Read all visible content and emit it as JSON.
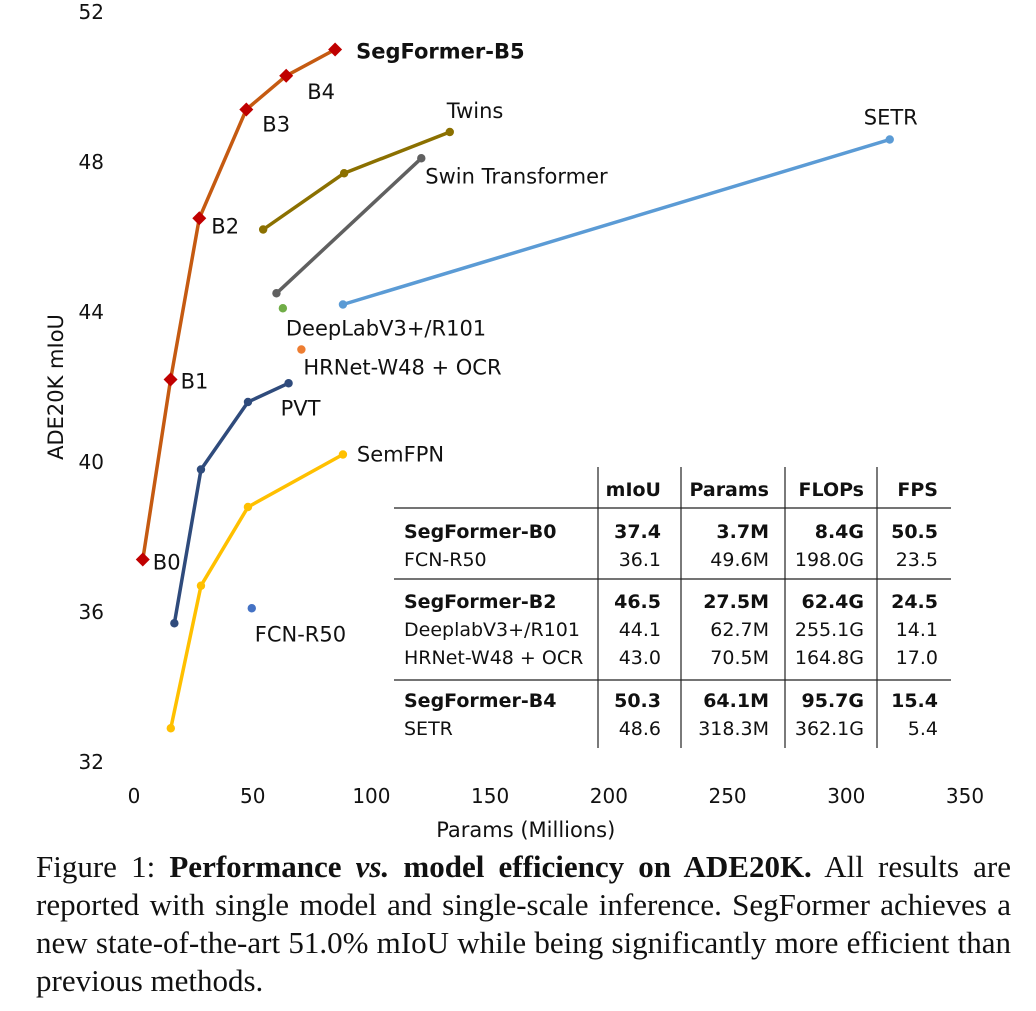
{
  "chart_data": {
    "type": "line",
    "xlabel": "Params (Millions)",
    "ylabel": "ADE20K mIoU",
    "xlim": [
      0,
      350
    ],
    "ylim": [
      32,
      52
    ],
    "xticks": [
      "0",
      "50",
      "100",
      "150",
      "200",
      "250",
      "300",
      "350"
    ],
    "yticks": [
      "32",
      "36",
      "40",
      "44",
      "48",
      "52"
    ],
    "grid": false,
    "series": [
      {
        "name": "SegFormer",
        "color": "#c55a11",
        "marker": "diamond",
        "marker_color": "#c00000",
        "points": [
          {
            "x": 3.7,
            "y": 37.4,
            "label": "B0"
          },
          {
            "x": 15.4,
            "y": 42.2,
            "label": "B1"
          },
          {
            "x": 27.5,
            "y": 46.5,
            "label": "B2"
          },
          {
            "x": 47.3,
            "y": 49.4,
            "label": "B3"
          },
          {
            "x": 64.1,
            "y": 50.3,
            "label": "B4"
          },
          {
            "x": 84.7,
            "y": 51.0,
            "label": "SegFormer-B5"
          }
        ]
      },
      {
        "name": "Twins",
        "color": "#8b7000",
        "points": [
          {
            "x": 54.4,
            "y": 46.2
          },
          {
            "x": 88.5,
            "y": 47.7
          },
          {
            "x": 133,
            "y": 48.8
          }
        ]
      },
      {
        "name": "Swin Transformer",
        "color": "#606060",
        "points": [
          {
            "x": 60,
            "y": 44.5
          },
          {
            "x": 121,
            "y": 48.1
          }
        ]
      },
      {
        "name": "SETR",
        "color": "#5b9bd5",
        "points": [
          {
            "x": 88,
            "y": 44.2
          },
          {
            "x": 318.3,
            "y": 48.6
          }
        ]
      },
      {
        "name": "DeepLabV3+/R101",
        "color": "#70ad47",
        "points": [
          {
            "x": 62.7,
            "y": 44.1
          }
        ]
      },
      {
        "name": "HRNet-W48 + OCR",
        "color": "#ed7d31",
        "points": [
          {
            "x": 70.5,
            "y": 43.0
          }
        ]
      },
      {
        "name": "PVT",
        "color": "#2f4b7c",
        "points": [
          {
            "x": 17,
            "y": 35.7
          },
          {
            "x": 28.2,
            "y": 39.8
          },
          {
            "x": 48,
            "y": 41.6
          },
          {
            "x": 65.1,
            "y": 42.1
          }
        ]
      },
      {
        "name": "SemFPN",
        "color": "#ffc000",
        "points": [
          {
            "x": 15.5,
            "y": 32.9
          },
          {
            "x": 28.2,
            "y": 36.7
          },
          {
            "x": 48,
            "y": 38.8
          },
          {
            "x": 88,
            "y": 40.2
          }
        ]
      },
      {
        "name": "FCN-R50",
        "color": "#4472c4",
        "points": [
          {
            "x": 49.6,
            "y": 36.1
          }
        ]
      }
    ],
    "table": {
      "headers": [
        "",
        "mIoU",
        "Params",
        "FLOPs",
        "FPS"
      ],
      "groups": [
        {
          "rows": [
            {
              "cells": [
                "SegFormer-B0",
                "37.4",
                "3.7M",
                "8.4G",
                "50.5"
              ],
              "bold": true
            },
            {
              "cells": [
                "FCN-R50",
                "36.1",
                "49.6M",
                "198.0G",
                "23.5"
              ],
              "bold": false
            }
          ]
        },
        {
          "rows": [
            {
              "cells": [
                "SegFormer-B2",
                "46.5",
                "27.5M",
                "62.4G",
                "24.5"
              ],
              "bold": true
            },
            {
              "cells": [
                "DeeplabV3+/R101",
                "44.1",
                "62.7M",
                "255.1G",
                "14.1"
              ],
              "bold": false
            },
            {
              "cells": [
                "HRNet-W48 + OCR",
                "43.0",
                "70.5M",
                "164.8G",
                "17.0"
              ],
              "bold": false
            }
          ]
        },
        {
          "rows": [
            {
              "cells": [
                "SegFormer-B4",
                "50.3",
                "64.1M",
                "95.7G",
                "15.4"
              ],
              "bold": true
            },
            {
              "cells": [
                "SETR",
                "48.6",
                "318.3M",
                "362.1G",
                "5.4"
              ],
              "bold": false
            }
          ]
        }
      ]
    }
  },
  "caption": {
    "prefix": "Figure 1: ",
    "bold1": "Performance ",
    "italic": "vs.",
    "bold2": " model efficiency on ADE20K.",
    "rest": " All results are reported with single model and single-scale inference. SegFormer achieves a new state-of-the-art 51.0% mIoU while being significantly more efficient than previous methods."
  }
}
